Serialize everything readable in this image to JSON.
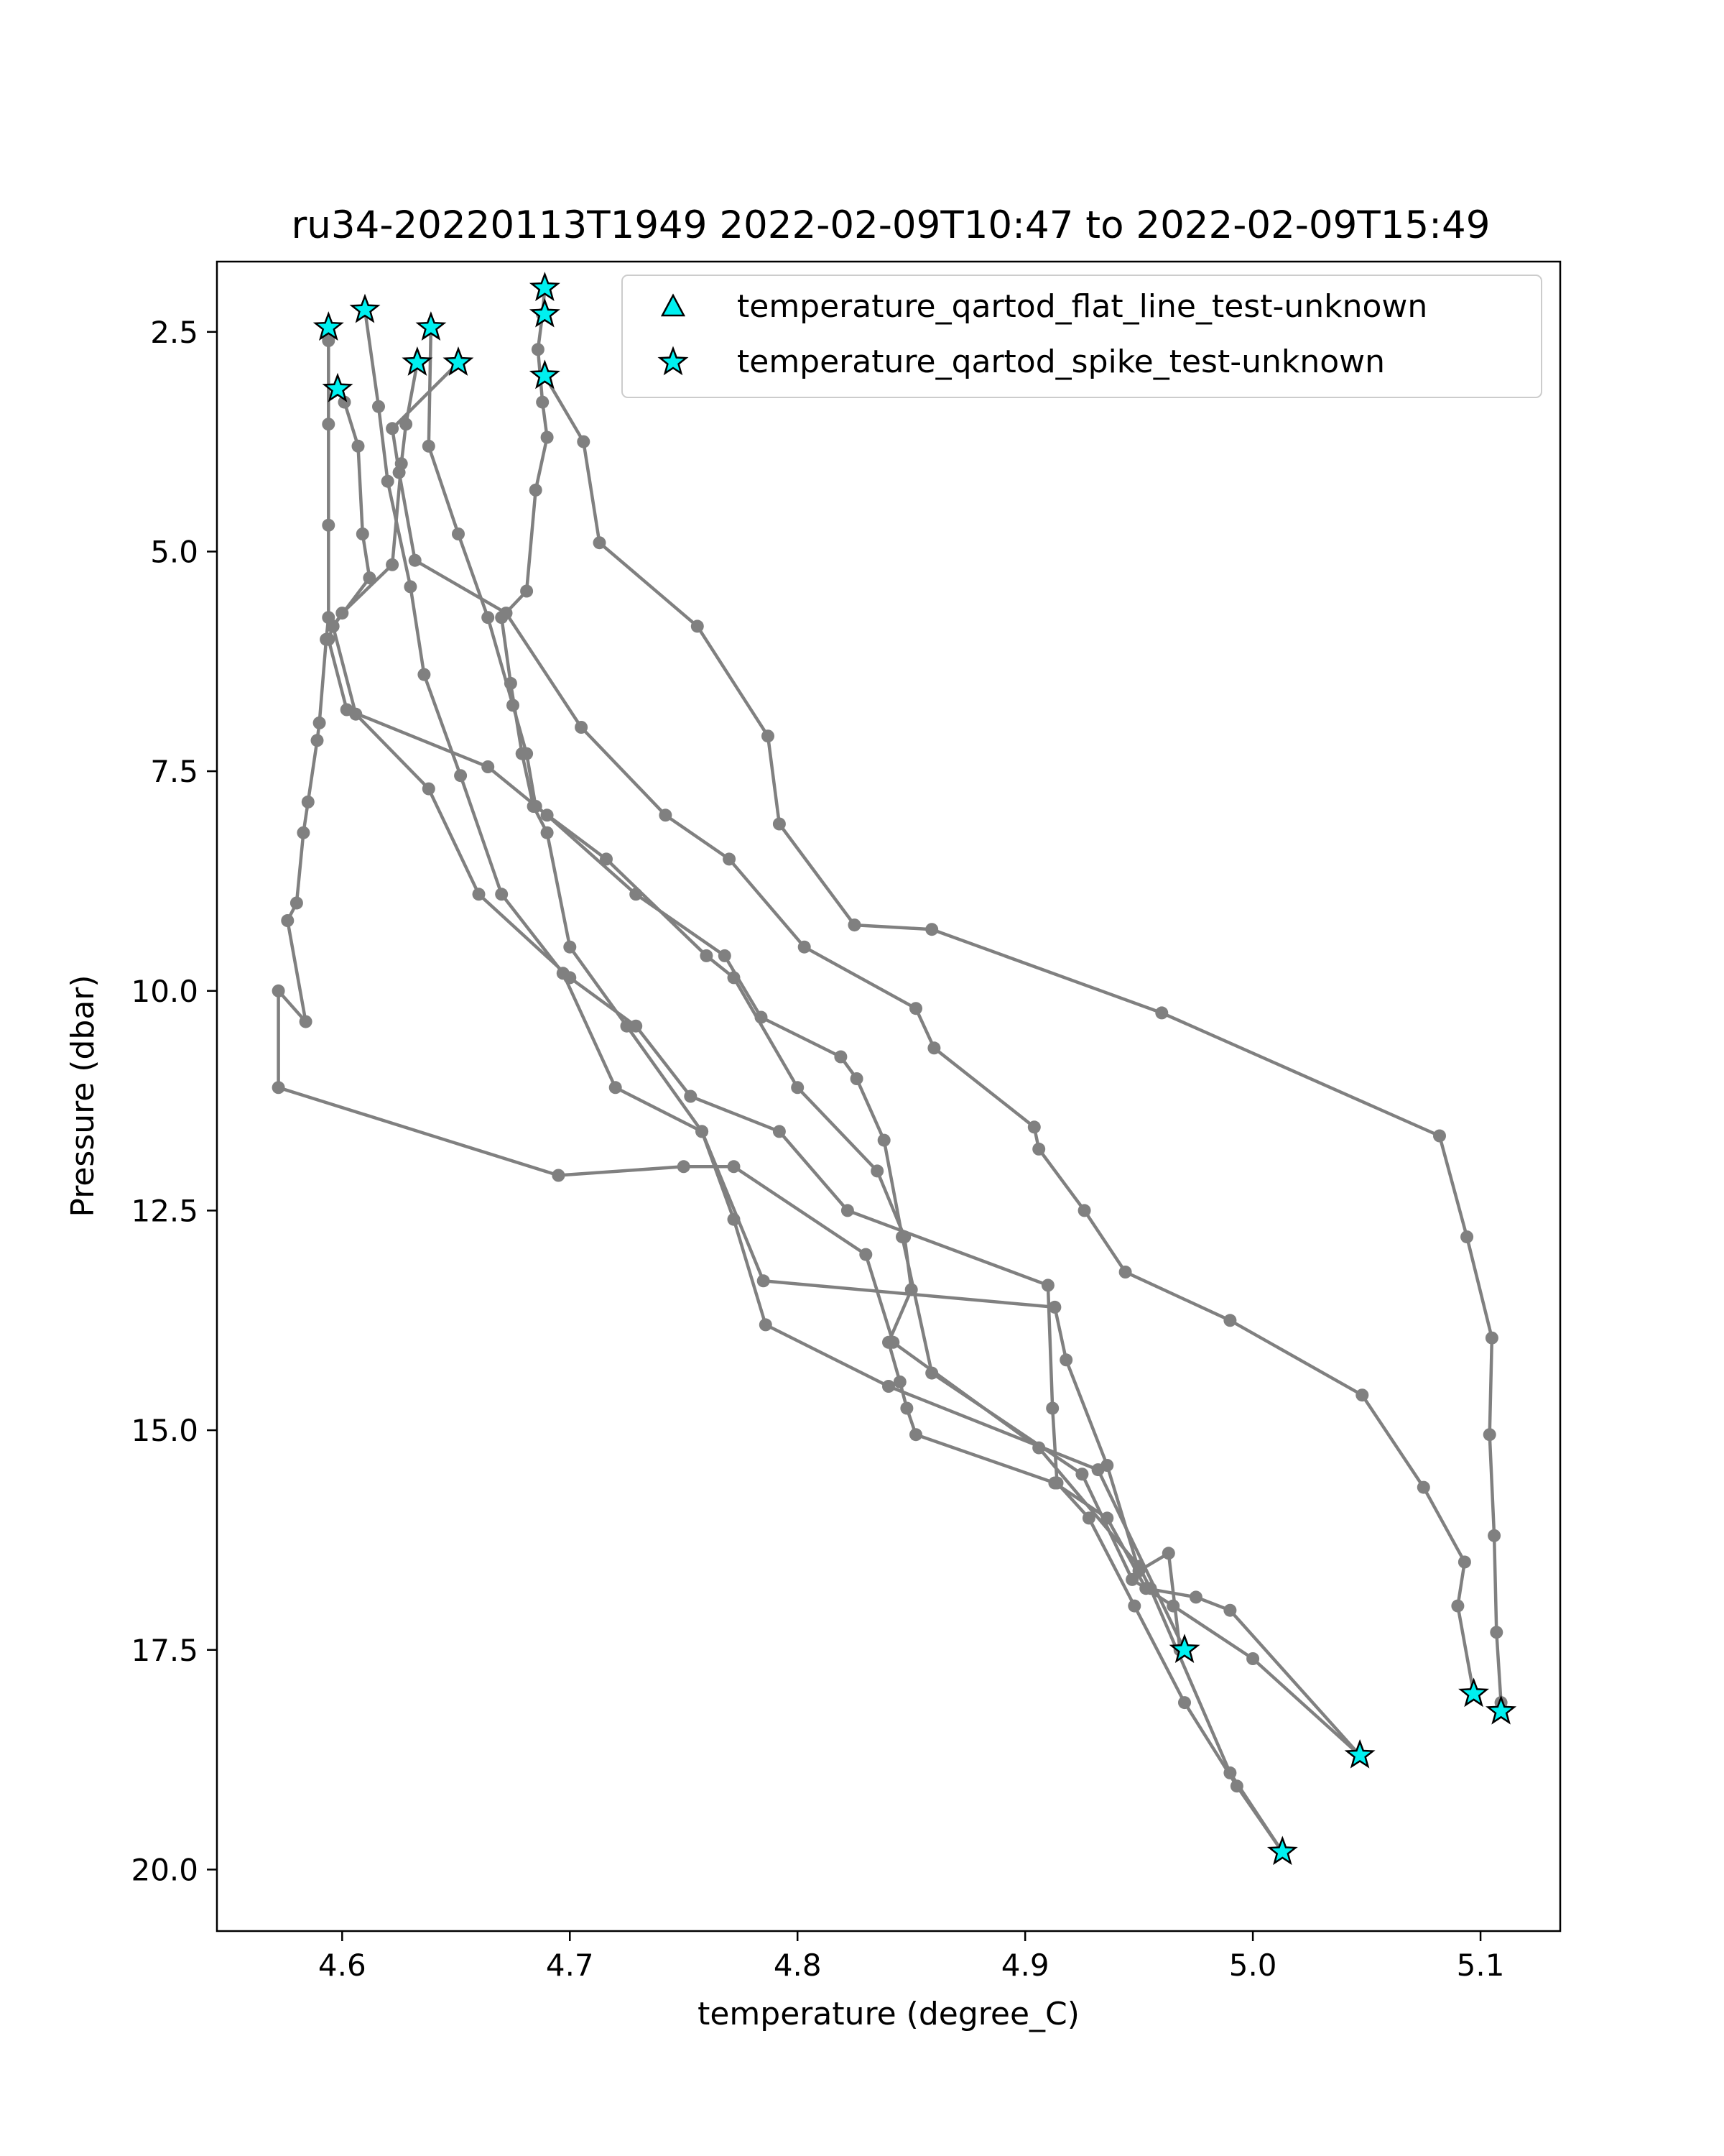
{
  "chart_data": {
    "type": "line",
    "title": "ru34-20220113T1949 2022-02-09T10:47 to 2022-02-09T15:49",
    "xlabel": "temperature (degree_C)",
    "ylabel": "Pressure (dbar)",
    "xlim": [
      4.545,
      5.135
    ],
    "ylim": [
      20.7,
      1.7
    ],
    "y_inverted": true,
    "grid": false,
    "legend_position": "top-right",
    "x_ticks": [
      {
        "value": 4.6,
        "label": "4.6"
      },
      {
        "value": 4.7,
        "label": "4.7"
      },
      {
        "value": 4.8,
        "label": "4.8"
      },
      {
        "value": 4.9,
        "label": "4.9"
      },
      {
        "value": 5.0,
        "label": "5.0"
      },
      {
        "value": 5.1,
        "label": "5.1"
      }
    ],
    "y_ticks": [
      {
        "value": 2.5,
        "label": "2.5"
      },
      {
        "value": 5.0,
        "label": "5.0"
      },
      {
        "value": 7.5,
        "label": "7.5"
      },
      {
        "value": 10.0,
        "label": "10.0"
      },
      {
        "value": 12.5,
        "label": "12.5"
      },
      {
        "value": 15.0,
        "label": "15.0"
      },
      {
        "value": 17.5,
        "label": "17.5"
      },
      {
        "value": 20.0,
        "label": "20.0"
      }
    ],
    "line_color": "#808080",
    "marker_color": "#00f0f0",
    "series": [
      {
        "points": [
          [
            4.61,
            2.25
          ],
          [
            4.616,
            3.35
          ],
          [
            4.62,
            4.2
          ],
          [
            4.63,
            5.4
          ],
          [
            4.636,
            6.4
          ],
          [
            4.652,
            7.55
          ],
          [
            4.67,
            8.9
          ],
          [
            4.697,
            9.8
          ],
          [
            4.72,
            11.1
          ],
          [
            4.758,
            11.6
          ],
          [
            4.772,
            12.6
          ],
          [
            4.786,
            13.8
          ],
          [
            4.84,
            14.5
          ],
          [
            4.932,
            15.45
          ],
          [
            4.97,
            17.5
          ]
        ]
      },
      {
        "points": [
          [
            4.639,
            2.45
          ],
          [
            4.638,
            3.8
          ],
          [
            4.651,
            4.8
          ],
          [
            4.664,
            5.75
          ],
          [
            4.675,
            6.75
          ],
          [
            4.681,
            7.3
          ],
          [
            4.685,
            7.9
          ],
          [
            4.716,
            8.5
          ],
          [
            4.76,
            9.6
          ],
          [
            4.772,
            9.85
          ],
          [
            4.8,
            11.1
          ],
          [
            4.835,
            12.05
          ],
          [
            4.847,
            12.8
          ],
          [
            4.85,
            13.4
          ],
          [
            4.84,
            14.0
          ],
          [
            4.845,
            14.45
          ],
          [
            4.848,
            14.75
          ],
          [
            4.852,
            15.05
          ],
          [
            4.913,
            15.6
          ],
          [
            4.936,
            16.0
          ],
          [
            4.953,
            16.8
          ],
          [
            4.975,
            16.9
          ],
          [
            4.99,
            17.05
          ],
          [
            5.047,
            18.7
          ]
        ]
      },
      {
        "points": [
          [
            4.689,
            2.0
          ],
          [
            4.688,
            2.3
          ],
          [
            4.686,
            2.7
          ],
          [
            4.688,
            3.3
          ],
          [
            4.69,
            3.7
          ],
          [
            4.685,
            4.3
          ],
          [
            4.681,
            5.45
          ],
          [
            4.67,
            5.75
          ],
          [
            4.674,
            6.5
          ],
          [
            4.679,
            7.3
          ],
          [
            4.684,
            7.9
          ],
          [
            4.69,
            8.2
          ],
          [
            4.7,
            9.5
          ],
          [
            4.725,
            10.4
          ],
          [
            4.758,
            11.6
          ],
          [
            4.785,
            13.3
          ],
          [
            4.913,
            13.6
          ],
          [
            4.918,
            14.2
          ],
          [
            4.936,
            15.4
          ],
          [
            4.95,
            16.6
          ],
          [
            4.963,
            16.4
          ],
          [
            4.968,
            17.5
          ],
          [
            4.97,
            17.5
          ]
        ]
      },
      {
        "points": [
          [
            4.651,
            2.85
          ],
          [
            4.622,
            3.6
          ],
          [
            4.625,
            4.1
          ],
          [
            4.632,
            5.1
          ],
          [
            4.672,
            5.7
          ],
          [
            4.705,
            7.0
          ],
          [
            4.742,
            8.0
          ],
          [
            4.77,
            8.5
          ],
          [
            4.803,
            9.5
          ],
          [
            4.852,
            10.2
          ],
          [
            4.86,
            10.65
          ],
          [
            4.904,
            11.55
          ],
          [
            4.906,
            11.8
          ],
          [
            4.926,
            12.5
          ],
          [
            4.944,
            13.2
          ],
          [
            4.99,
            13.75
          ],
          [
            5.048,
            14.6
          ],
          [
            5.075,
            15.65
          ],
          [
            5.093,
            16.5
          ],
          [
            5.09,
            17.0
          ],
          [
            5.097,
            18.0
          ]
        ]
      },
      {
        "points": [
          [
            4.598,
            3.15
          ],
          [
            4.601,
            3.3
          ],
          [
            4.607,
            3.8
          ],
          [
            4.609,
            4.8
          ],
          [
            4.612,
            5.3
          ],
          [
            4.596,
            5.85
          ],
          [
            4.606,
            6.85
          ],
          [
            4.638,
            7.7
          ],
          [
            4.66,
            8.9
          ],
          [
            4.7,
            9.85
          ],
          [
            4.729,
            10.4
          ],
          [
            4.753,
            11.2
          ],
          [
            4.792,
            11.6
          ],
          [
            4.822,
            12.5
          ],
          [
            4.91,
            13.35
          ],
          [
            4.912,
            14.75
          ],
          [
            4.914,
            15.6
          ],
          [
            4.928,
            16.0
          ],
          [
            4.948,
            17.0
          ],
          [
            4.97,
            18.1
          ],
          [
            4.993,
            19.05
          ],
          [
            5.013,
            19.8
          ]
        ]
      },
      {
        "points": [
          [
            4.594,
            2.45
          ],
          [
            4.594,
            2.6
          ],
          [
            4.594,
            3.55
          ],
          [
            4.594,
            4.7
          ],
          [
            4.594,
            5.75
          ],
          [
            4.593,
            6.0
          ],
          [
            4.59,
            6.95
          ],
          [
            4.589,
            7.15
          ],
          [
            4.585,
            7.85
          ],
          [
            4.583,
            8.2
          ],
          [
            4.58,
            9.0
          ],
          [
            4.576,
            9.2
          ],
          [
            4.584,
            10.35
          ],
          [
            4.572,
            10.0
          ],
          [
            4.572,
            11.1
          ],
          [
            4.695,
            12.1
          ],
          [
            4.75,
            12.0
          ],
          [
            4.772,
            12.0
          ],
          [
            4.83,
            13.0
          ],
          [
            4.842,
            14.0
          ],
          [
            4.906,
            15.2
          ],
          [
            4.95,
            16.55
          ],
          [
            4.955,
            16.8
          ],
          [
            4.99,
            18.9
          ],
          [
            5.013,
            19.8
          ]
        ]
      },
      {
        "points": [
          [
            4.633,
            2.85
          ],
          [
            4.628,
            3.55
          ],
          [
            4.626,
            4.0
          ],
          [
            4.622,
            5.15
          ],
          [
            4.6,
            5.7
          ],
          [
            4.596,
            5.85
          ],
          [
            4.594,
            6.0
          ],
          [
            4.602,
            6.8
          ],
          [
            4.664,
            7.45
          ],
          [
            4.69,
            8.0
          ],
          [
            4.729,
            8.9
          ],
          [
            4.768,
            9.6
          ],
          [
            4.784,
            10.3
          ],
          [
            4.819,
            10.75
          ],
          [
            4.826,
            11.0
          ],
          [
            4.838,
            11.7
          ],
          [
            4.846,
            12.8
          ],
          [
            4.859,
            14.35
          ],
          [
            4.925,
            15.5
          ],
          [
            4.947,
            16.7
          ],
          [
            4.965,
            17.0
          ],
          [
            5.0,
            17.6
          ],
          [
            5.047,
            18.7
          ]
        ]
      },
      {
        "points": [
          [
            4.689,
            3.0
          ],
          [
            4.706,
            3.75
          ],
          [
            4.713,
            4.9
          ],
          [
            4.756,
            5.85
          ],
          [
            4.787,
            7.1
          ],
          [
            4.792,
            8.1
          ],
          [
            4.825,
            9.25
          ],
          [
            4.859,
            9.3
          ],
          [
            4.96,
            10.25
          ],
          [
            5.082,
            11.65
          ],
          [
            5.094,
            12.8
          ],
          [
            5.105,
            13.95
          ],
          [
            5.104,
            15.05
          ],
          [
            5.106,
            16.2
          ],
          [
            5.107,
            17.3
          ],
          [
            5.109,
            18.1
          ]
        ]
      }
    ],
    "flagged": {
      "flat_line": [],
      "spike": [
        [
          4.61,
          2.25
        ],
        [
          4.639,
          2.45
        ],
        [
          4.594,
          2.45
        ],
        [
          4.651,
          2.85
        ],
        [
          4.633,
          2.85
        ],
        [
          4.598,
          3.15
        ],
        [
          4.689,
          2.0
        ],
        [
          4.689,
          2.3
        ],
        [
          4.689,
          3.0
        ],
        [
          4.97,
          17.5
        ],
        [
          5.047,
          18.7
        ],
        [
          5.013,
          19.8
        ],
        [
          5.097,
          18.0
        ],
        [
          5.109,
          18.2
        ]
      ]
    },
    "legend": [
      {
        "marker": "triangle",
        "label": "temperature_qartod_flat_line_test-unknown"
      },
      {
        "marker": "star",
        "label": "temperature_qartod_spike_test-unknown"
      }
    ]
  }
}
